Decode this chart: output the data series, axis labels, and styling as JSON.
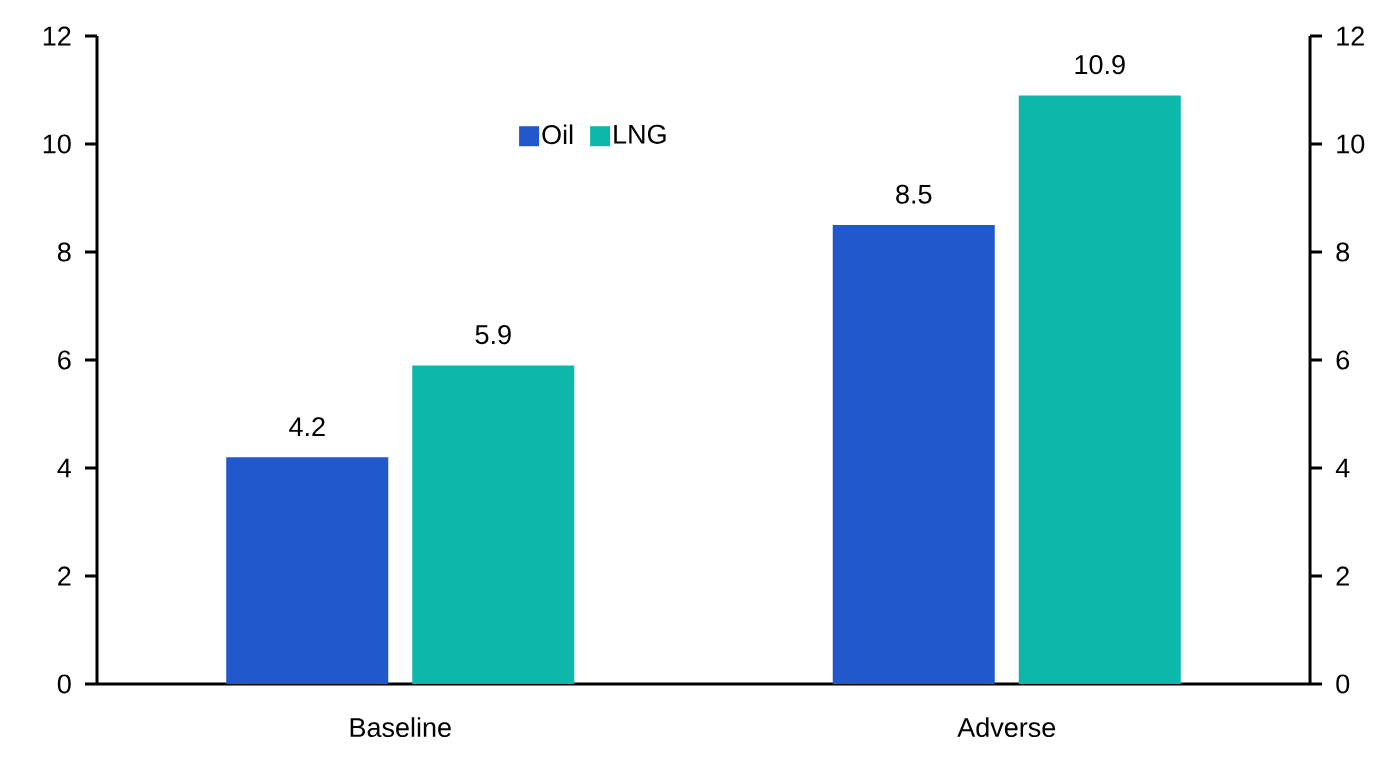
{
  "chart_data": {
    "type": "bar",
    "categories": [
      "Baseline",
      "Adverse"
    ],
    "series": [
      {
        "name": "Oil",
        "color": "#2158cc",
        "values": [
          4.2,
          8.5
        ]
      },
      {
        "name": "LNG",
        "color": "#0db8aa",
        "values": [
          5.9,
          10.9
        ]
      }
    ],
    "ylim": [
      0,
      12
    ],
    "yticks": [
      0,
      2,
      4,
      6,
      8,
      10,
      12
    ],
    "y2lim": [
      0,
      12
    ],
    "y2ticks": [
      0,
      2,
      4,
      6,
      8,
      10,
      12
    ],
    "data_labels": true,
    "legend": "top",
    "grid": false
  }
}
